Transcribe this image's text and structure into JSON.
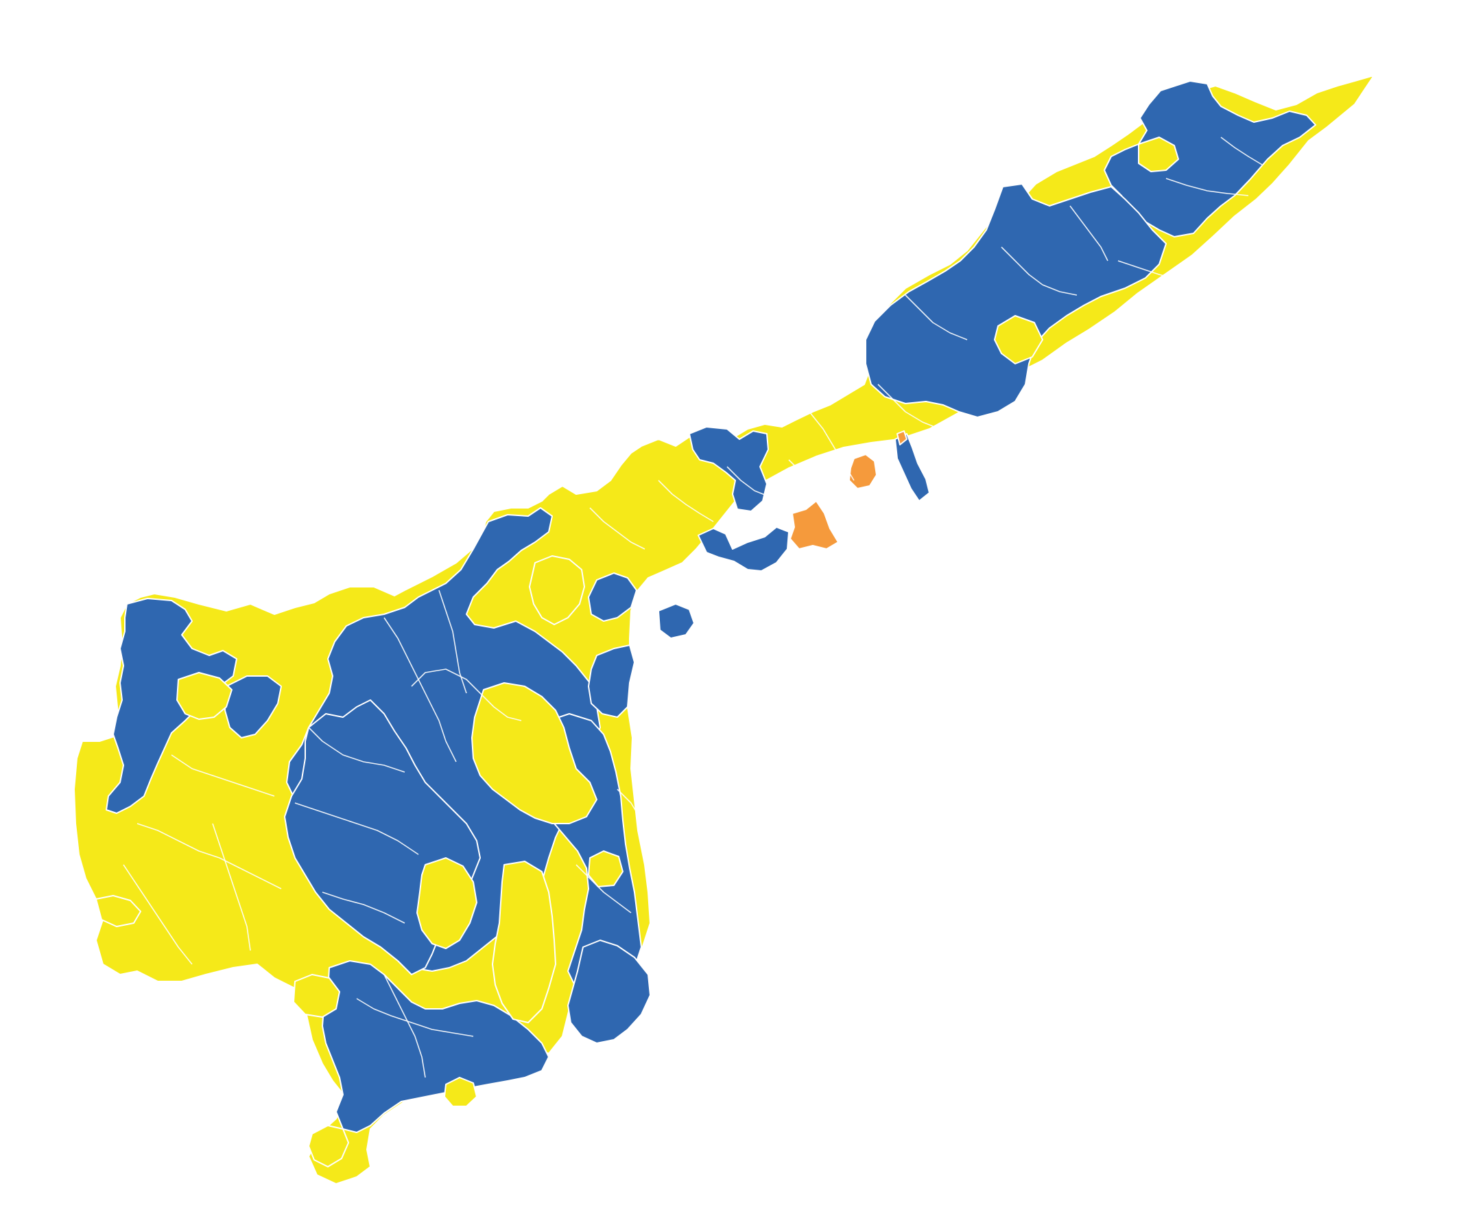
{
  "map": {
    "type": "choropleth",
    "colors": {
      "background": "#ffffff",
      "yellow": "#f5e919",
      "blue": "#2f67b0",
      "orange": "#f59a3c",
      "boundary": "#ffffff"
    },
    "categories": [
      "yellow",
      "blue",
      "orange"
    ]
  }
}
